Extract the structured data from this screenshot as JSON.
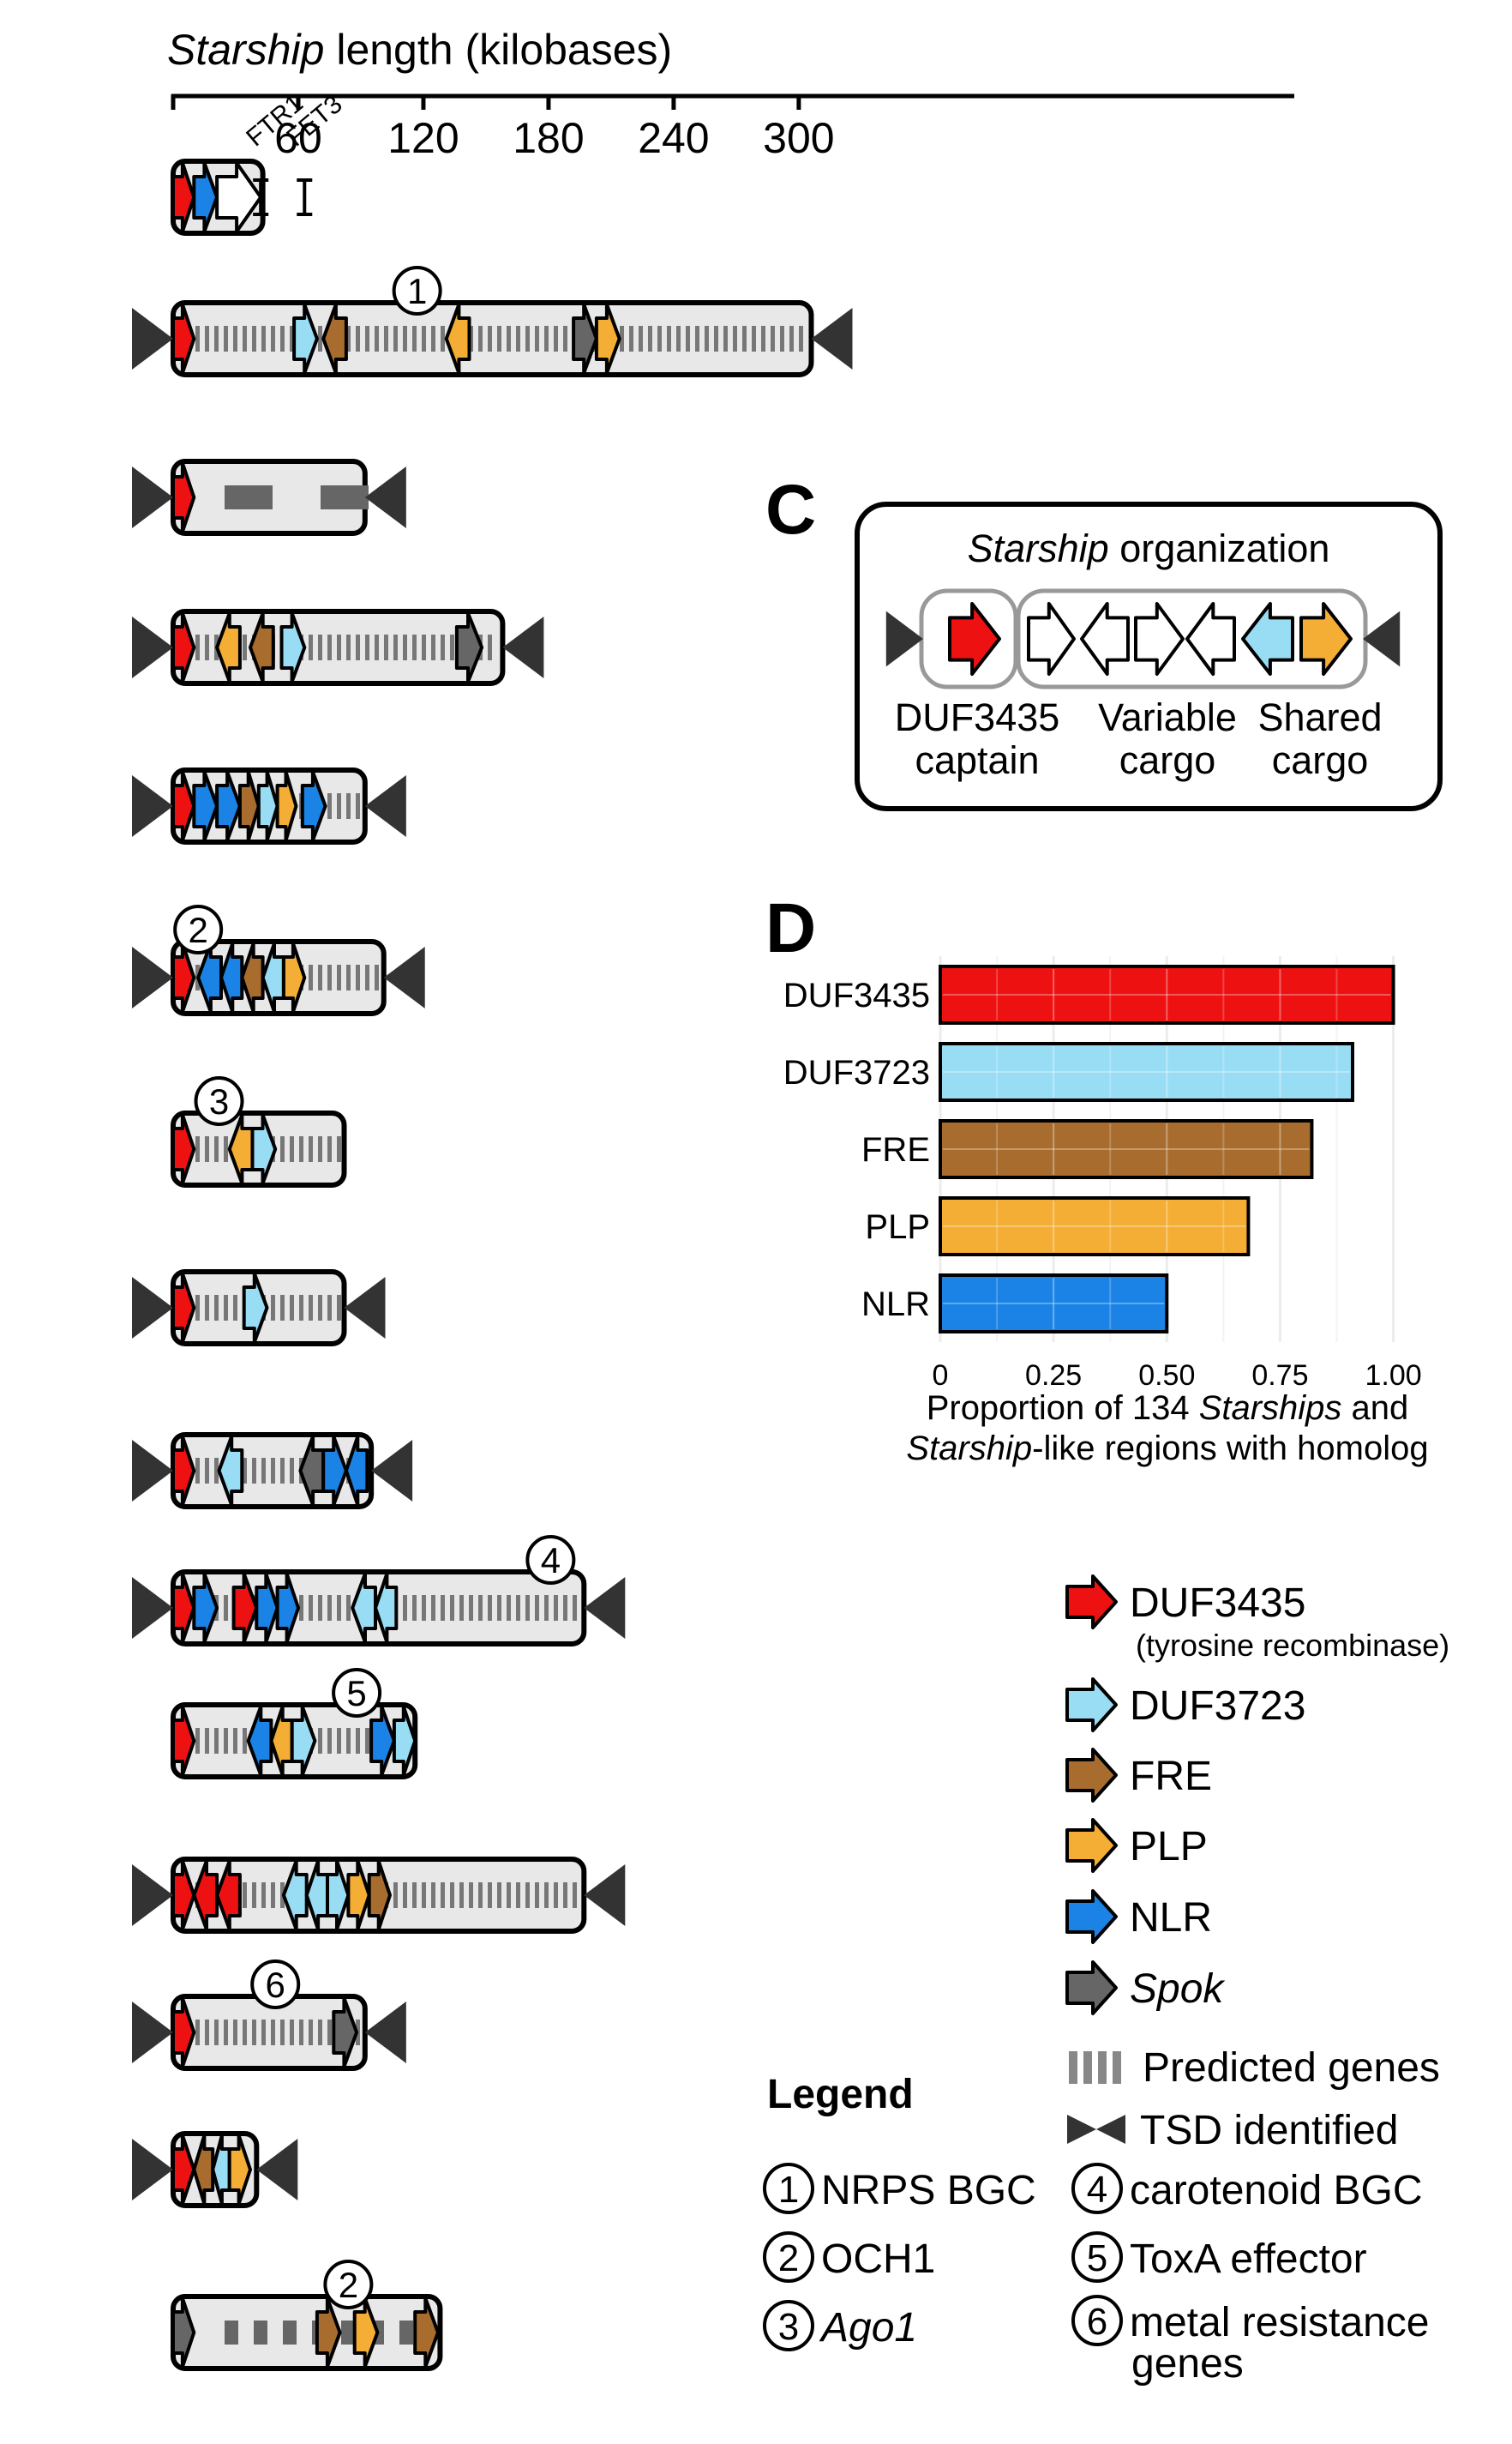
{
  "panel_c": {
    "letter": "C",
    "title_italic": "Starship",
    "title_rest": " organization",
    "captain_line1": "DUF3435",
    "captain_line2": "captain",
    "variable_line1": "Variable",
    "variable_line2": "cargo",
    "shared_line1": "Shared",
    "shared_line2": "cargo"
  },
  "panel_d": {
    "letter": "D",
    "xlabel_line1_a": "Proportion of 134 ",
    "xlabel_line1_b": "Starships",
    "xlabel_line1_c": " and",
    "xlabel_line2_a": "Starship",
    "xlabel_line2_b": "-like regions with homolog"
  },
  "axis": {
    "title_italic": "Starship",
    "title_rest": " length (kilobases)",
    "range_kb": [
      0,
      300
    ],
    "ticks": [
      "60",
      "120",
      "180",
      "240",
      "300"
    ],
    "tick_values": [
      60,
      120,
      180,
      240,
      300
    ]
  },
  "annotations": {
    "ftr1": "FTR1",
    "fet3": "FET3"
  },
  "colors": {
    "DUF3435": "#ee1111",
    "DUF3723": "#99ddf5",
    "FRE": "#a86d2e",
    "PLP": "#f5ae35",
    "NLR": "#1b83e6",
    "Spok": "#666666",
    "white": "#ffffff",
    "element_fill": "#e8e8e8"
  },
  "chart_data": {
    "type": "bar",
    "orientation": "horizontal",
    "categories": [
      "DUF3435",
      "DUF3723",
      "FRE",
      "PLP",
      "NLR"
    ],
    "values": [
      1.0,
      0.91,
      0.82,
      0.68,
      0.5
    ],
    "colors": [
      "#ee1111",
      "#99ddf5",
      "#a86d2e",
      "#f5ae35",
      "#1b83e6"
    ],
    "xlim": [
      0,
      1.05
    ],
    "xticks": [
      0,
      0.25,
      0.5,
      0.75,
      1.0
    ],
    "xtick_labels": [
      "0",
      "0.25",
      "0.50",
      "0.75",
      "1.00"
    ],
    "grid": true
  },
  "legend": {
    "title": "Legend",
    "genes": [
      {
        "key": "DUF3435",
        "label": "DUF3435",
        "sublabel": "(tyrosine recombinase)",
        "italic": false
      },
      {
        "key": "DUF3723",
        "label": "DUF3723",
        "italic": false
      },
      {
        "key": "FRE",
        "label": "FRE",
        "italic": false
      },
      {
        "key": "PLP",
        "label": "PLP",
        "italic": false
      },
      {
        "key": "NLR",
        "label": "NLR",
        "italic": false
      },
      {
        "key": "Spok",
        "label": "Spok",
        "italic": true
      }
    ],
    "predicted_genes": "Predicted genes",
    "tsd": "TSD identified",
    "numbered": [
      {
        "num": "1",
        "label": "NRPS BGC",
        "italic": false
      },
      {
        "num": "2",
        "label": "OCH1",
        "italic": false
      },
      {
        "num": "3",
        "label": "Ago1",
        "italic": true
      },
      {
        "num": "4",
        "label": "carotenoid BGC",
        "italic": false
      },
      {
        "num": "5",
        "label": "ToxA effector",
        "italic": false
      },
      {
        "num": "6",
        "label": "metal resistance",
        "label2": "genes",
        "italic": false
      }
    ]
  },
  "elements": [
    {
      "length_kb": 43,
      "tsd": false,
      "stripes": "none",
      "dividers": [
        42,
        63
      ],
      "genes": [
        {
          "type": "DUF3435",
          "start": 0,
          "end": 10,
          "dir": 1
        },
        {
          "type": "NLR",
          "start": 10,
          "end": 21,
          "dir": 1
        },
        {
          "type": "white",
          "start": 21,
          "end": 42,
          "dir": 1
        },
        {
          "type": "white",
          "start": 42,
          "end": 43,
          "dir": 1
        }
      ],
      "markers": []
    },
    {
      "length_kb": 306,
      "tsd": true,
      "stripes": "dense",
      "genes": [
        {
          "type": "DUF3435",
          "start": 0,
          "end": 10,
          "dir": 1
        },
        {
          "type": "DUF3723",
          "start": 58,
          "end": 69,
          "dir": 1
        },
        {
          "type": "FRE",
          "start": 72,
          "end": 83,
          "dir": -1
        },
        {
          "type": "PLP",
          "start": 131,
          "end": 142,
          "dir": -1
        },
        {
          "type": "Spok",
          "start": 192,
          "end": 203,
          "dir": 1
        },
        {
          "type": "PLP",
          "start": 203,
          "end": 214,
          "dir": 1
        }
      ],
      "markers": [
        {
          "num": "1",
          "kb": 117
        }
      ]
    },
    {
      "length_kb": 92,
      "tsd": true,
      "stripes": "dashes",
      "genes": [
        {
          "type": "DUF3435",
          "start": 0,
          "end": 10,
          "dir": 1
        }
      ],
      "markers": []
    },
    {
      "length_kb": 158,
      "tsd": true,
      "stripes": "dense",
      "genes": [
        {
          "type": "DUF3435",
          "start": 0,
          "end": 10,
          "dir": 1
        },
        {
          "type": "PLP",
          "start": 21,
          "end": 32,
          "dir": -1
        },
        {
          "type": "FRE",
          "start": 37,
          "end": 48,
          "dir": -1
        },
        {
          "type": "DUF3723",
          "start": 52,
          "end": 63,
          "dir": 1
        },
        {
          "type": "Spok",
          "start": 136,
          "end": 148,
          "dir": 1
        }
      ],
      "markers": []
    },
    {
      "length_kb": 92,
      "tsd": true,
      "stripes": "dense",
      "genes": [
        {
          "type": "DUF3435",
          "start": 0,
          "end": 10,
          "dir": 1
        },
        {
          "type": "NLR",
          "start": 10,
          "end": 21,
          "dir": 1
        },
        {
          "type": "NLR",
          "start": 21,
          "end": 32,
          "dir": 1
        },
        {
          "type": "FRE",
          "start": 32,
          "end": 41,
          "dir": 1
        },
        {
          "type": "DUF3723",
          "start": 41,
          "end": 50,
          "dir": 1
        },
        {
          "type": "PLP",
          "start": 50,
          "end": 59,
          "dir": 1
        },
        {
          "type": "NLR",
          "start": 62,
          "end": 73,
          "dir": 1
        }
      ],
      "markers": []
    },
    {
      "length_kb": 101,
      "tsd": true,
      "stripes": "dense",
      "genes": [
        {
          "type": "DUF3435",
          "start": 0,
          "end": 10,
          "dir": 1
        },
        {
          "type": "NLR",
          "start": 12,
          "end": 23,
          "dir": -1
        },
        {
          "type": "NLR",
          "start": 23,
          "end": 33,
          "dir": -1
        },
        {
          "type": "FRE",
          "start": 33,
          "end": 43,
          "dir": -1
        },
        {
          "type": "DUF3723",
          "start": 43,
          "end": 53,
          "dir": -1
        },
        {
          "type": "PLP",
          "start": 53,
          "end": 63,
          "dir": 1
        }
      ],
      "markers": [
        {
          "num": "2",
          "kb": 12
        }
      ]
    },
    {
      "length_kb": 82,
      "tsd": false,
      "stripes": "dense",
      "dividers": [
        38
      ],
      "genes": [
        {
          "type": "DUF3435",
          "start": 0,
          "end": 10,
          "dir": 1
        },
        {
          "type": "PLP",
          "start": 27,
          "end": 38,
          "dir": -1
        },
        {
          "type": "DUF3723",
          "start": 38,
          "end": 49,
          "dir": 1
        }
      ],
      "markers": [
        {
          "num": "3",
          "kb": 22
        }
      ]
    },
    {
      "length_kb": 82,
      "tsd": true,
      "stripes": "dense",
      "genes": [
        {
          "type": "DUF3435",
          "start": 0,
          "end": 10,
          "dir": 1
        },
        {
          "type": "DUF3723",
          "start": 34,
          "end": 45,
          "dir": 1
        }
      ],
      "markers": []
    },
    {
      "length_kb": 95,
      "tsd": true,
      "stripes": "dense",
      "genes": [
        {
          "type": "DUF3435",
          "start": 0,
          "end": 10,
          "dir": 1
        },
        {
          "type": "DUF3723",
          "start": 22,
          "end": 33,
          "dir": -1
        },
        {
          "type": "Spok",
          "start": 61,
          "end": 72,
          "dir": -1
        },
        {
          "type": "NLR",
          "start": 72,
          "end": 83,
          "dir": 1
        },
        {
          "type": "NLR",
          "start": 83,
          "end": 93,
          "dir": -1
        }
      ],
      "markers": []
    },
    {
      "length_kb": 197,
      "tsd": true,
      "stripes": "dense",
      "genes": [
        {
          "type": "DUF3435",
          "start": 0,
          "end": 10,
          "dir": 1
        },
        {
          "type": "NLR",
          "start": 10,
          "end": 21,
          "dir": 1
        },
        {
          "type": "DUF3435",
          "start": 29,
          "end": 40,
          "dir": 1
        },
        {
          "type": "NLR",
          "start": 40,
          "end": 50,
          "dir": 1
        },
        {
          "type": "NLR",
          "start": 50,
          "end": 60,
          "dir": 1
        },
        {
          "type": "DUF3723",
          "start": 86,
          "end": 97,
          "dir": -1
        },
        {
          "type": "DUF3723",
          "start": 97,
          "end": 107,
          "dir": -1
        }
      ],
      "markers": [
        {
          "num": "4",
          "kb": 181
        }
      ]
    },
    {
      "length_kb": 116,
      "tsd": false,
      "stripes": "dense",
      "genes": [
        {
          "type": "DUF3435",
          "start": 0,
          "end": 10,
          "dir": 1
        },
        {
          "type": "NLR",
          "start": 36,
          "end": 47,
          "dir": -1
        },
        {
          "type": "PLP",
          "start": 47,
          "end": 57,
          "dir": -1
        },
        {
          "type": "DUF3723",
          "start": 57,
          "end": 68,
          "dir": 1
        },
        {
          "type": "NLR",
          "start": 95,
          "end": 106,
          "dir": 1
        },
        {
          "type": "DUF3723",
          "start": 106,
          "end": 116,
          "dir": 1
        }
      ],
      "markers": [
        {
          "num": "5",
          "kb": 88
        }
      ]
    },
    {
      "length_kb": 197,
      "tsd": true,
      "stripes": "dense",
      "genes": [
        {
          "type": "DUF3435",
          "start": 0,
          "end": 10,
          "dir": 1
        },
        {
          "type": "DUF3435",
          "start": 10,
          "end": 21,
          "dir": -1
        },
        {
          "type": "DUF3435",
          "start": 21,
          "end": 32,
          "dir": -1
        },
        {
          "type": "DUF3723",
          "start": 53,
          "end": 64,
          "dir": -1
        },
        {
          "type": "DUF3723",
          "start": 64,
          "end": 74,
          "dir": -1
        },
        {
          "type": "DUF3723",
          "start": 74,
          "end": 84,
          "dir": 1
        },
        {
          "type": "PLP",
          "start": 84,
          "end": 94,
          "dir": 1
        },
        {
          "type": "FRE",
          "start": 94,
          "end": 104,
          "dir": 1
        }
      ],
      "markers": []
    },
    {
      "length_kb": 92,
      "tsd": true,
      "stripes": "dense",
      "genes": [
        {
          "type": "DUF3435",
          "start": 0,
          "end": 10,
          "dir": 1
        },
        {
          "type": "Spok",
          "start": 77,
          "end": 88,
          "dir": 1
        }
      ],
      "markers": [
        {
          "num": "6",
          "kb": 49
        }
      ]
    },
    {
      "length_kb": 40,
      "tsd": true,
      "stripes": "none",
      "dividers": [
        27
      ],
      "genes": [
        {
          "type": "DUF3435",
          "start": 0,
          "end": 10,
          "dir": 1
        },
        {
          "type": "FRE",
          "start": 10,
          "end": 19,
          "dir": -1
        },
        {
          "type": "DUF3723",
          "start": 19,
          "end": 27,
          "dir": -1
        },
        {
          "type": "PLP",
          "start": 27,
          "end": 37,
          "dir": 1
        }
      ],
      "markers": []
    },
    {
      "length_kb": 128,
      "tsd": false,
      "stripes": "dashes",
      "genes": [
        {
          "type": "Spok",
          "start": 0,
          "end": 10,
          "dir": 1
        },
        {
          "type": "FRE",
          "start": 69,
          "end": 80,
          "dir": 1
        },
        {
          "type": "PLP",
          "start": 87,
          "end": 98,
          "dir": 1
        },
        {
          "type": "FRE",
          "start": 116,
          "end": 127,
          "dir": 1
        }
      ],
      "markers": [
        {
          "num": "2",
          "kb": 84
        }
      ]
    }
  ]
}
